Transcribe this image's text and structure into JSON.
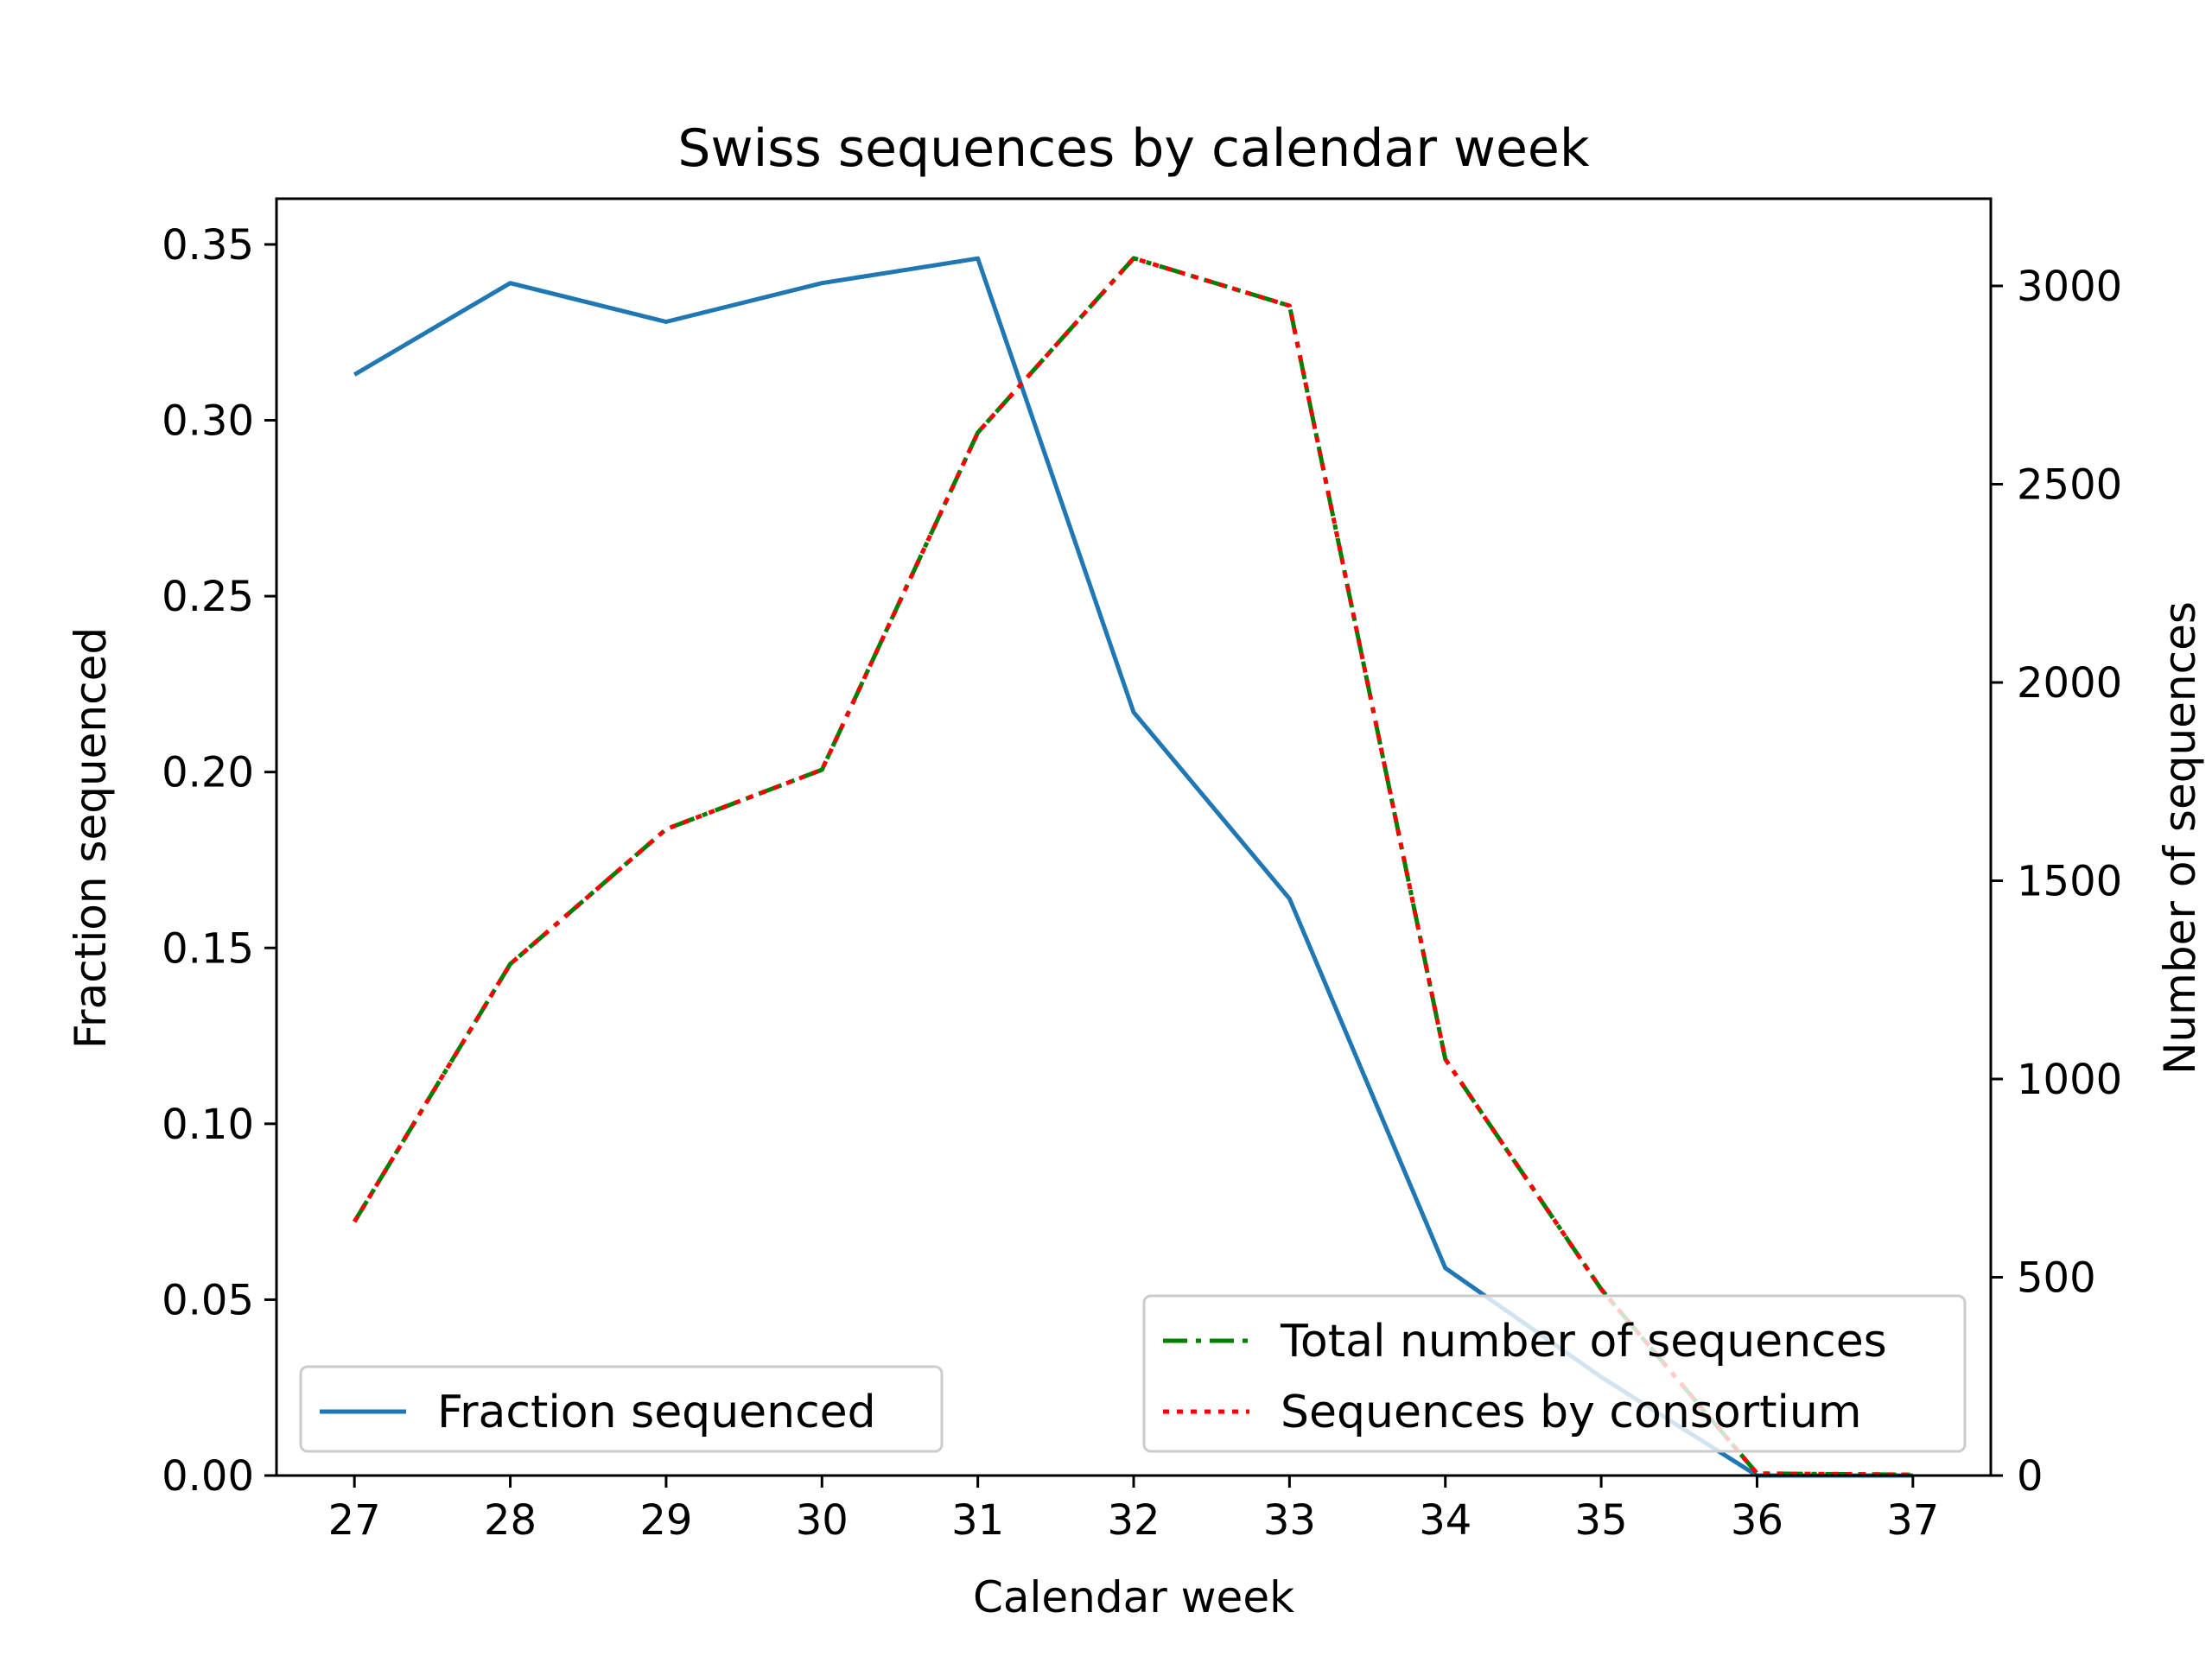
{
  "chart_data": {
    "type": "line",
    "title": "Swiss sequences by calendar week",
    "xlabel": "Calendar week",
    "ylabel_left": "Fraction sequenced",
    "ylabel_right": "Number of sequences",
    "x": [
      27,
      28,
      29,
      30,
      31,
      32,
      33,
      34,
      35,
      36,
      37
    ],
    "xlim": [
      26.5,
      37.5
    ],
    "ylim_left": [
      0,
      0.363
    ],
    "ylim_right": [
      0,
      3220
    ],
    "yticks_left": [
      "0.00",
      "0.05",
      "0.10",
      "0.15",
      "0.20",
      "0.25",
      "0.30",
      "0.35"
    ],
    "yticks_left_values": [
      0,
      0.05,
      0.1,
      0.15,
      0.2,
      0.25,
      0.3,
      0.35
    ],
    "yticks_right": [
      "0",
      "500",
      "1000",
      "1500",
      "2000",
      "2500",
      "3000"
    ],
    "yticks_right_values": [
      0,
      500,
      1000,
      1500,
      2000,
      2500,
      3000
    ],
    "xticks": [
      "27",
      "28",
      "29",
      "30",
      "31",
      "32",
      "33",
      "34",
      "35",
      "36",
      "37"
    ],
    "series": [
      {
        "name": "Fraction sequenced",
        "axis": "left",
        "style": "solid",
        "color": "#1f77b4",
        "values": [
          0.313,
          0.339,
          0.328,
          0.339,
          0.346,
          0.217,
          0.164,
          0.059,
          0.028,
          0.0,
          0.0
        ]
      },
      {
        "name": "Total number of sequences",
        "axis": "right",
        "style": "dashdot",
        "color": "#008000",
        "values": [
          640,
          1290,
          1630,
          1780,
          2630,
          3070,
          2950,
          1050,
          470,
          5,
          2
        ]
      },
      {
        "name": "Sequences by consortium",
        "axis": "right",
        "style": "dotted",
        "color": "#ff0000",
        "values": [
          640,
          1290,
          1630,
          1780,
          2630,
          3070,
          2950,
          1050,
          470,
          5,
          2
        ]
      }
    ],
    "legends": [
      {
        "placement": "lower-left",
        "entries": [
          "Fraction sequenced"
        ]
      },
      {
        "placement": "lower-right",
        "entries": [
          "Total number of sequences",
          "Sequences by consortium"
        ]
      }
    ],
    "grid": false
  }
}
